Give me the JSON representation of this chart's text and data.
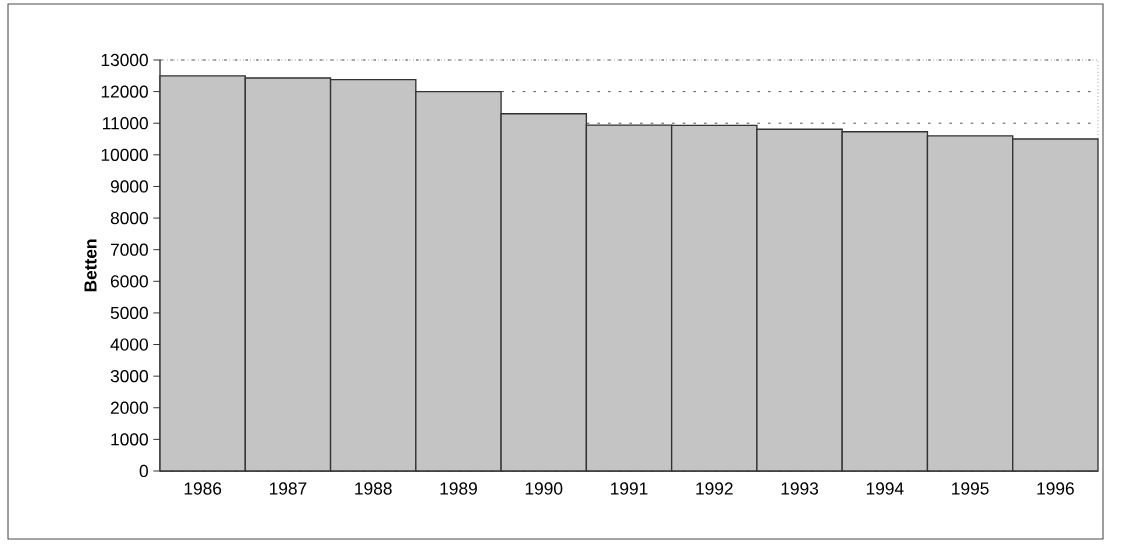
{
  "chart_data": {
    "type": "bar",
    "ylabel": "Betten",
    "categories": [
      "1986",
      "1987",
      "1988",
      "1989",
      "1990",
      "1991",
      "1992",
      "1993",
      "1994",
      "1995",
      "1996"
    ],
    "values": [
      12500,
      12430,
      12380,
      12000,
      11300,
      10940,
      10930,
      10810,
      10730,
      10600,
      10500
    ],
    "color": "#c4c4c4",
    "ylim": [
      0,
      13000
    ],
    "yticks": [
      0,
      1000,
      2000,
      3000,
      4000,
      5000,
      6000,
      7000,
      8000,
      9000,
      10000,
      11000,
      12000,
      13000
    ],
    "grid": "y"
  }
}
